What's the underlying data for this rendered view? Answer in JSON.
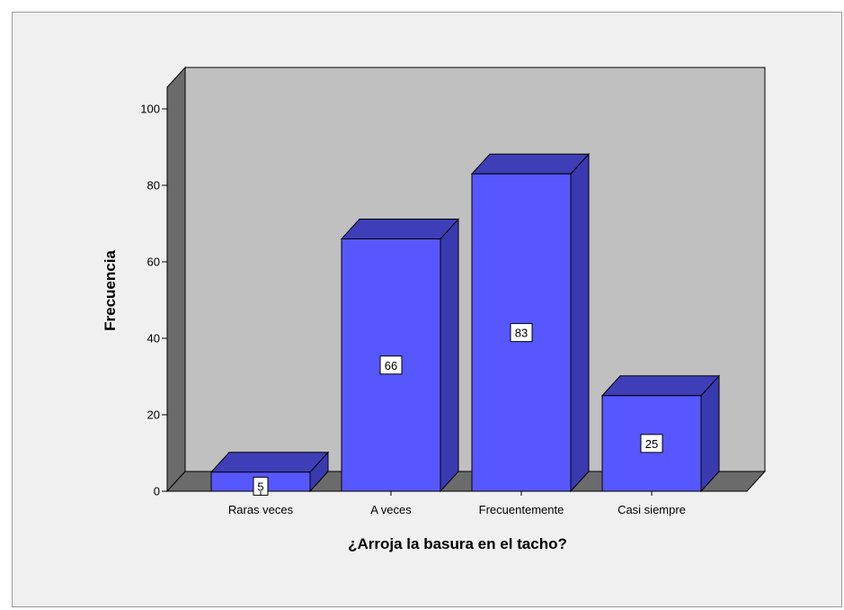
{
  "chart_data": {
    "type": "bar",
    "categories": [
      "Raras veces",
      "A veces",
      "Frecuentemente",
      "Casi siempre"
    ],
    "values": [
      5,
      66,
      83,
      25
    ],
    "data_labels": [
      "5",
      "66",
      "83",
      "25"
    ],
    "xlabel": "¿Arroja la basura en el tacho?",
    "ylabel": "Frecuencia",
    "ylim": [
      0,
      100
    ],
    "yticks": [
      0,
      20,
      40,
      60,
      80,
      100
    ],
    "ytick_labels": [
      "0",
      "20",
      "40",
      "60",
      "80",
      "100"
    ],
    "grid": false,
    "legend": "none",
    "style": "3d",
    "colors": {
      "bar_front": "#5757ff",
      "bar_side": "#3a3ab0",
      "bar_top": "#3e3eb8",
      "bar_edge": "#000000",
      "wall": "#c0c0c0",
      "side_wall": "#6b6b6b",
      "floor": "#6b6b6b",
      "background": "#f0f0f0"
    }
  }
}
